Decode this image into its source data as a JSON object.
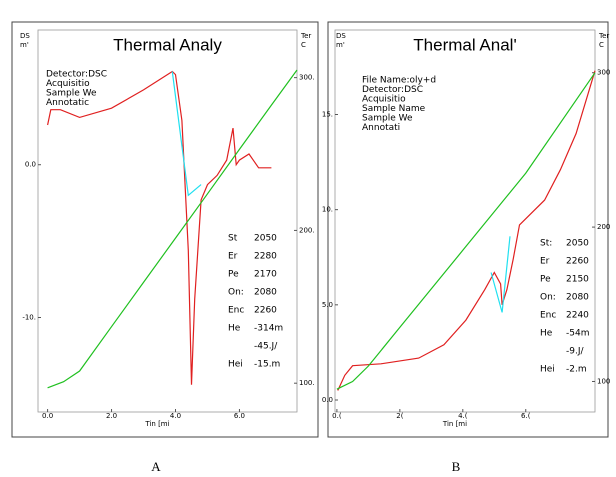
{
  "chart_data": [
    {
      "type": "line",
      "title": "Thermal Analy",
      "caption": "A",
      "ylabel": [
        "DS",
        "m'"
      ],
      "y2label": [
        "Ter",
        "C"
      ],
      "xlabel": "Tin [mi",
      "xlim": [
        -0.3,
        7.8
      ],
      "xticks": [
        {
          "value": 0,
          "label": "0.0"
        },
        {
          "value": 2,
          "label": "2.0"
        },
        {
          "value": 4,
          "label": "4.0"
        },
        {
          "value": 6,
          "label": "6.0"
        }
      ],
      "ylim": [
        -15.4,
        6.2
      ],
      "yticks": [
        {
          "value": 0,
          "label": "0.0"
        },
        {
          "value": -10,
          "label": "-10."
        }
      ],
      "y2lim": [
        89,
        305
      ],
      "y2ticks": [
        {
          "value": 300,
          "label": "300."
        },
        {
          "value": 200,
          "label": "200."
        },
        {
          "value": 100,
          "label": "100."
        }
      ],
      "info": [
        "Detector:DSC",
        "Acquisitio",
        "Sample We",
        "Annotatic"
      ],
      "result_labels": [
        "St",
        "Er",
        "Pe",
        "On:",
        "Enc",
        "He",
        "Hei"
      ],
      "result_values": [
        "2050",
        "2280",
        "2170",
        "2080",
        "2260",
        "-314m",
        "-45.J/",
        "-15.m"
      ],
      "series": [
        {
          "color": "#e02020",
          "x": [
            0,
            0.1,
            0.4,
            1.0,
            2.0,
            3.0,
            3.6,
            3.9,
            4.0,
            4.2,
            4.4,
            4.5,
            4.6,
            4.8,
            5.0,
            5.3,
            5.6,
            5.8,
            5.9,
            6.0,
            6.3,
            6.6,
            7.0
          ],
          "values": [
            2.6,
            3.6,
            3.6,
            3.1,
            3.7,
            4.9,
            5.7,
            6.1,
            5.9,
            2.9,
            -5.6,
            -14.4,
            -8.8,
            -2.3,
            -1.3,
            -0.7,
            0.3,
            2.4,
            0,
            0.3,
            0.7,
            -0.2,
            -0.2
          ]
        },
        {
          "color": "#20e0f0",
          "x": [
            3.9,
            4.4,
            4.8
          ],
          "values": [
            6.1,
            -2.0,
            -1.3
          ]
        },
        {
          "color": "#20c020",
          "axis": "y2",
          "x": [
            0,
            0.5,
            1,
            2,
            3,
            4,
            5,
            6,
            7,
            7.8
          ],
          "values": [
            97,
            101,
            108,
            137,
            166,
            195,
            224,
            253,
            282,
            305
          ]
        }
      ]
    },
    {
      "type": "line",
      "title": "Thermal Anal'",
      "caption": "B",
      "ylabel": [
        "DS",
        "m'"
      ],
      "y2label": [
        "Ter",
        "C"
      ],
      "xlabel": "Tin [mi",
      "xlim": [
        -0.06,
        8.2
      ],
      "xticks": [
        {
          "value": 0,
          "label": "0.("
        },
        {
          "value": 2,
          "label": "2("
        },
        {
          "value": 4,
          "label": "4.("
        },
        {
          "value": 6,
          "label": "6.("
        }
      ],
      "ylim": [
        0,
        17.6
      ],
      "yticks": [
        {
          "value": 15,
          "label": "15."
        },
        {
          "value": 10,
          "label": "10."
        },
        {
          "value": 5,
          "label": "5.0"
        },
        {
          "value": 0,
          "label": "0.0"
        }
      ],
      "y2lim": [
        88,
        305
      ],
      "y2ticks": [
        300,
        200,
        100
      ],
      "info": [
        "File Name:oly+d",
        "Detector:DSC",
        "Acquisitio",
        "Sample Name",
        "Sample We",
        "Annotati"
      ],
      "result_labels": [
        "St:",
        "Er",
        "Pe",
        "On:",
        "Enc",
        "He",
        "Hei"
      ],
      "result_values": [
        "2050",
        "2260",
        "2150",
        "2080",
        "2240",
        "-54m",
        "-9.J/",
        "-2.m"
      ],
      "series": [
        {
          "color": "#e02020",
          "x": [
            0.03,
            0.25,
            0.5,
            1.4,
            2.6,
            3.4,
            4.1,
            4.7,
            5.0,
            5.2,
            5.25,
            5.4,
            5.6,
            5.8,
            6.6,
            7.1,
            7.6,
            8.2
          ],
          "values": [
            0.5,
            1.3,
            1.8,
            1.9,
            2.2,
            2.9,
            4.2,
            5.8,
            6.7,
            6.1,
            5.0,
            5.8,
            7.4,
            9.2,
            10.5,
            12.1,
            14.0,
            17.3
          ]
        },
        {
          "color": "#20e0f0",
          "x": [
            4.9,
            5.25,
            5.5
          ],
          "values": [
            6.7,
            4.6,
            8.6
          ]
        },
        {
          "color": "#20c020",
          "axis": "y2",
          "x": [
            0,
            0.5,
            1,
            2,
            4,
            6,
            8.2
          ],
          "values": [
            95,
            100,
            110,
            135,
            185,
            235,
            300
          ]
        }
      ]
    }
  ]
}
